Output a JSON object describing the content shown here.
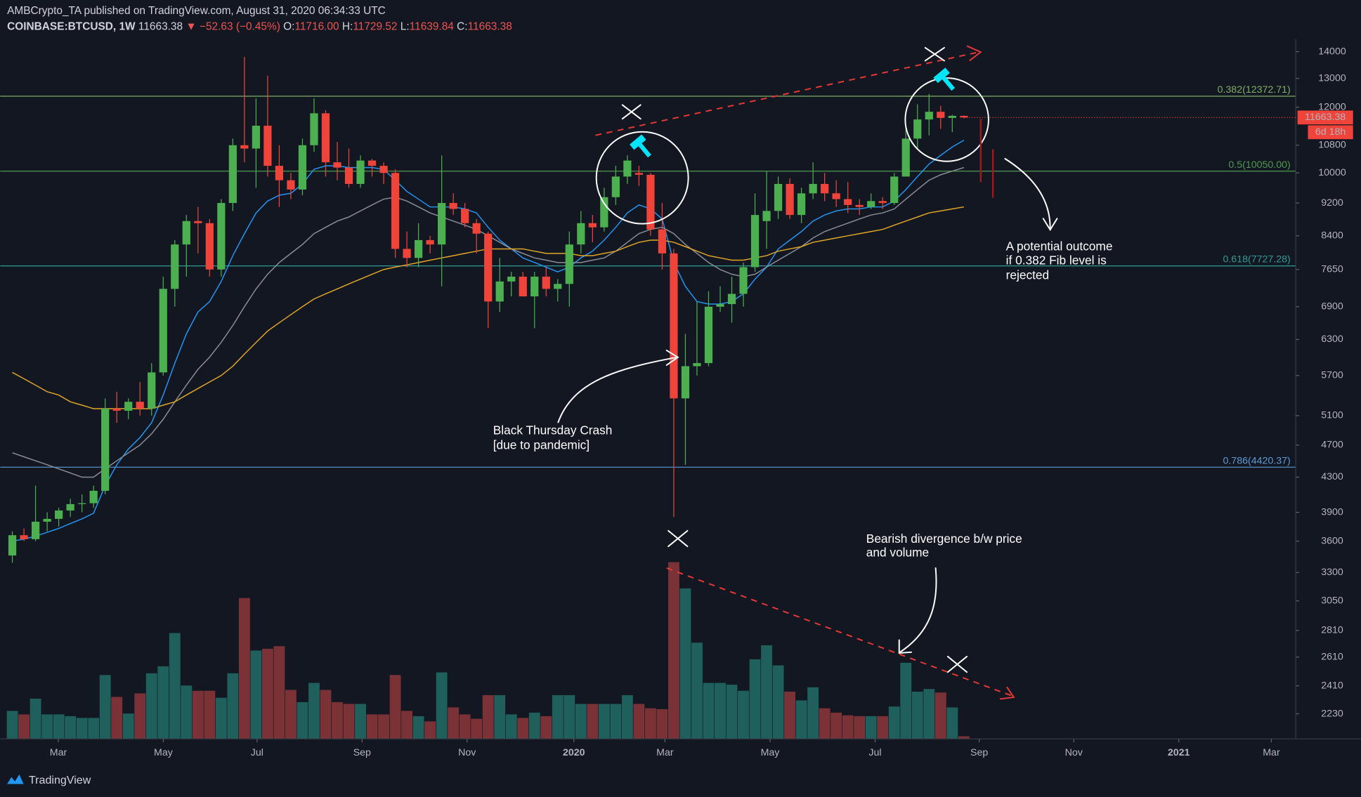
{
  "header": {
    "publisher": "AMBCrypto_TA published on TradingView.com, August 31, 2020 06:34:33 UTC",
    "symbol": "COINBASE:BTCUSD, 1W",
    "last": "11663.38",
    "change": "▼ −52.63 (−0.45%)",
    "ohlc": [
      {
        "label": "O:",
        "value": "11716.00"
      },
      {
        "label": "H:",
        "value": "11729.52"
      },
      {
        "label": "L:",
        "value": "11639.84"
      },
      {
        "label": "C:",
        "value": "11663.38"
      }
    ]
  },
  "chart_data": {
    "type": "candlestick",
    "log": true,
    "ylim": [
      2080,
      14500
    ],
    "yticks": [
      14000,
      13000,
      12000,
      10800,
      10000,
      9200,
      8400,
      7650,
      6900,
      6300,
      5700,
      5100,
      4700,
      4300,
      3900,
      3600,
      3300,
      3050,
      2810,
      2610,
      2410,
      2230
    ],
    "xlim": [
      -1.05,
      110.6
    ],
    "xticks": [
      {
        "value": 3.96,
        "label": "Mar"
      },
      {
        "value": 13.01,
        "label": "May"
      },
      {
        "value": 21.09,
        "label": "Jul"
      },
      {
        "value": 30.14,
        "label": "Sep"
      },
      {
        "value": 39.19,
        "label": "Nov"
      },
      {
        "value": 48.39,
        "label": "2020"
      },
      {
        "value": 56.24,
        "label": "Mar"
      },
      {
        "value": 65.3,
        "label": "May"
      },
      {
        "value": 74.35,
        "label": "Jul"
      },
      {
        "value": 83.32,
        "label": "Sep"
      },
      {
        "value": 91.47,
        "label": "Nov"
      },
      {
        "value": 100.52,
        "label": "2021"
      },
      {
        "value": 108.5,
        "label": "Mar"
      }
    ],
    "open": [
      3460,
      3660,
      3620,
      3800,
      3830,
      3920,
      3990,
      4000,
      4140,
      5200,
      5170,
      5300,
      5200,
      5750,
      7250,
      8200,
      8750,
      8700,
      7650,
      9200,
      10800,
      10700,
      11400,
      10200,
      9800,
      9550,
      10800,
      11800,
      10300,
      10150,
      9700,
      10350,
      10200,
      10000,
      8100,
      7900,
      8300,
      8200,
      9200,
      9050,
      8700,
      8450,
      7000,
      7400,
      7500,
      7100,
      7500,
      7250,
      7350,
      8200,
      8700,
      8600,
      9350,
      9900,
      10000,
      9950,
      8550,
      8000,
      5350,
      5850,
      5900,
      6900,
      6950,
      7150,
      7700,
      8750,
      9000,
      9700,
      8900,
      9450,
      9700,
      9450,
      9300,
      9150,
      9100,
      9250,
      9200,
      9900,
      11000,
      11600,
      11850,
      11650,
      11716
    ],
    "high": [
      3700,
      3730,
      4200,
      3900,
      3950,
      4050,
      4100,
      4200,
      5350,
      5450,
      5350,
      5600,
      5900,
      7500,
      8300,
      8900,
      9100,
      8800,
      9300,
      11000,
      13800,
      12300,
      13100,
      10800,
      10000,
      11000,
      12300,
      11900,
      10900,
      10700,
      10500,
      10400,
      10300,
      10100,
      8500,
      8700,
      8400,
      10500,
      9450,
      9200,
      8800,
      8500,
      7900,
      7600,
      7600,
      7600,
      7700,
      7450,
      8500,
      9000,
      8900,
      9600,
      10200,
      10500,
      10200,
      10000,
      9200,
      8100,
      6400,
      7000,
      7200,
      7300,
      7500,
      7800,
      9450,
      10050,
      9900,
      9850,
      9600,
      10300,
      10000,
      9800,
      9750,
      9300,
      9450,
      9350,
      10000,
      11400,
      12100,
      12450,
      12050,
      11750,
      11729.52
    ],
    "low": [
      3390,
      3600,
      3600,
      3700,
      3750,
      3850,
      3900,
      3950,
      4100,
      5000,
      5050,
      5100,
      5100,
      5700,
      6900,
      7500,
      8000,
      7500,
      7500,
      9000,
      10300,
      9600,
      9900,
      9100,
      9300,
      9400,
      10600,
      9900,
      9800,
      9600,
      9600,
      9900,
      9700,
      7900,
      7700,
      7700,
      8000,
      7300,
      8900,
      8600,
      8000,
      6500,
      6800,
      7100,
      7100,
      6500,
      7100,
      7000,
      6900,
      8000,
      8250,
      8500,
      9150,
      9700,
      9650,
      8400,
      7650,
      3850,
      4450,
      5700,
      5850,
      6800,
      6600,
      6900,
      7600,
      8100,
      8800,
      8800,
      8700,
      9300,
      9250,
      9100,
      8950,
      8900,
      9050,
      9050,
      9150,
      9900,
      10700,
      11100,
      11300,
      11200,
      11639.84
    ],
    "close": [
      3660,
      3620,
      3800,
      3830,
      3920,
      3990,
      4000,
      4140,
      5200,
      5170,
      5300,
      5200,
      5750,
      7250,
      8200,
      8750,
      8700,
      7650,
      9200,
      10800,
      10700,
      11400,
      10200,
      9800,
      9550,
      10800,
      11800,
      10300,
      10150,
      9700,
      10350,
      10200,
      10000,
      8100,
      7900,
      8300,
      8200,
      9200,
      9050,
      8700,
      8450,
      7000,
      7400,
      7500,
      7100,
      7500,
      7250,
      7350,
      8200,
      8700,
      8600,
      9350,
      9900,
      10350,
      9950,
      8550,
      8000,
      5350,
      5850,
      5900,
      6900,
      6950,
      7150,
      7700,
      8900,
      9000,
      9700,
      8900,
      9450,
      9700,
      9450,
      9300,
      9150,
      9100,
      9250,
      9200,
      9900,
      11000,
      11600,
      11850,
      11650,
      11716,
      11663.38
    ],
    "volume": [
      32,
      28,
      46,
      28,
      28,
      26,
      24,
      24,
      73,
      48,
      29,
      52,
      75,
      83,
      121,
      61,
      55,
      55,
      47,
      75,
      161,
      101,
      103,
      106,
      56,
      42,
      64,
      56,
      42,
      40,
      40,
      28,
      28,
      73,
      32,
      26,
      20,
      76,
      36,
      28,
      23,
      50,
      50,
      28,
      24,
      30,
      26,
      50,
      50,
      40,
      40,
      40,
      40,
      50,
      40,
      35,
      34,
      202,
      172,
      110,
      64,
      64,
      62,
      55,
      91,
      107,
      84,
      54,
      44,
      59,
      35,
      30,
      27,
      26,
      26,
      26,
      37,
      87,
      54,
      57,
      53,
      36,
      3
    ],
    "volume_lim": [
      0,
      800
    ],
    "up_color": "#4caf50",
    "down_color": "#f0443a",
    "volume_up_color": "#1f5f5c",
    "volume_down_color": "#7a3236",
    "moving_averages": [
      {
        "color": "#2196f3",
        "values": [
          3600,
          3620,
          3650,
          3690,
          3730,
          3780,
          3830,
          3890,
          4200,
          4450,
          4650,
          4800,
          5000,
          5400,
          5900,
          6400,
          6800,
          7000,
          7400,
          7950,
          8450,
          8950,
          9250,
          9400,
          9450,
          9700,
          10100,
          10200,
          10200,
          10150,
          10150,
          10150,
          10100,
          9800,
          9500,
          9300,
          9100,
          9100,
          9100,
          9050,
          8950,
          8600,
          8300,
          8100,
          7900,
          7800,
          7700,
          7600,
          7700,
          7900,
          8050,
          8300,
          8600,
          8950,
          9150,
          9050,
          8800,
          7800,
          7300,
          7000,
          6950,
          6950,
          7000,
          7150,
          7450,
          7700,
          8100,
          8300,
          8500,
          8750,
          8900,
          9000,
          9050,
          9050,
          9100,
          9100,
          9250,
          9550,
          9900,
          10250,
          10500,
          10750,
          10950
        ]
      },
      {
        "color": "#8a8d96",
        "values": [
          4600,
          4550,
          4500,
          4450,
          4400,
          4350,
          4300,
          4300,
          4400,
          4500,
          4600,
          4700,
          4850,
          5050,
          5300,
          5550,
          5800,
          6000,
          6250,
          6550,
          6900,
          7250,
          7550,
          7800,
          8000,
          8200,
          8450,
          8600,
          8750,
          8850,
          9000,
          9150,
          9300,
          9350,
          9250,
          9100,
          8950,
          8850,
          8750,
          8650,
          8550,
          8400,
          8250,
          8100,
          8000,
          7900,
          7850,
          7800,
          7800,
          7800,
          7850,
          7900,
          8050,
          8250,
          8450,
          8550,
          8600,
          8450,
          8200,
          8000,
          7800,
          7650,
          7550,
          7500,
          7550,
          7700,
          7850,
          8000,
          8150,
          8350,
          8500,
          8600,
          8700,
          8800,
          8900,
          8950,
          9050,
          9300,
          9550,
          9800,
          9950,
          10050,
          10150
        ]
      },
      {
        "color": "#e0a526",
        "values": [
          5750,
          5650,
          5550,
          5450,
          5400,
          5300,
          5250,
          5200,
          5200,
          5200,
          5200,
          5200,
          5200,
          5250,
          5300,
          5400,
          5500,
          5600,
          5700,
          5850,
          6050,
          6250,
          6450,
          6600,
          6750,
          6900,
          7050,
          7150,
          7250,
          7350,
          7450,
          7550,
          7650,
          7700,
          7750,
          7800,
          7850,
          7900,
          7950,
          8000,
          8050,
          8100,
          8100,
          8100,
          8100,
          8050,
          8000,
          8000,
          8000,
          7950,
          7950,
          8000,
          8050,
          8150,
          8250,
          8300,
          8300,
          8250,
          8150,
          8050,
          7950,
          7900,
          7850,
          7850,
          7900,
          7950,
          8050,
          8100,
          8150,
          8250,
          8300,
          8350,
          8400,
          8450,
          8500,
          8550,
          8650,
          8750,
          8850,
          8950,
          9000,
          9050,
          9100
        ]
      }
    ],
    "fib_levels": [
      {
        "value": 12372.71,
        "label": "0.382(12372.71)",
        "color": "#7fae65"
      },
      {
        "value": 10050,
        "label": "0.5(10050.00)",
        "color": "#4f9a4f"
      },
      {
        "value": 7727.28,
        "label": "0.618(7727.28)",
        "color": "#2e9c95"
      },
      {
        "value": 4420.37,
        "label": "0.786(4420.37)",
        "color": "#5b9bd5"
      }
    ],
    "countdown": "6d 18h"
  },
  "annotations": [
    {
      "lines": [
        "Black Thursday Crash",
        "[due to pandemic]"
      ]
    },
    {
      "lines": [
        "A potential outcome",
        "if 0.382 Fib level is",
        "rejected"
      ]
    },
    {
      "lines": [
        "Bearish divergence b/w price",
        "and volume"
      ]
    }
  ],
  "footer": {
    "brand": "TradingView"
  }
}
